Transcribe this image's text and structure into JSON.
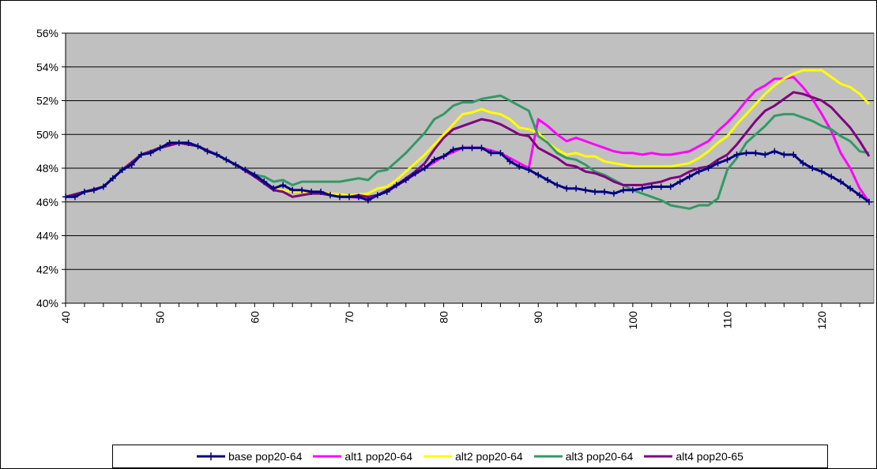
{
  "chart_data": {
    "type": "line",
    "title": "",
    "xlabel": "",
    "ylabel": "",
    "xlim": [
      40,
      125.5
    ],
    "ylim": [
      40,
      56
    ],
    "x_ticks": [
      "40",
      "50",
      "60",
      "70",
      "80",
      "90",
      "100",
      "110",
      "120"
    ],
    "y_ticks": [
      "40%",
      "42%",
      "44%",
      "46%",
      "48%",
      "50%",
      "52%",
      "54%",
      "56%"
    ],
    "grid": "horizontal",
    "plot_background": "#c0c0c0",
    "legend_position": "bottom",
    "series": [
      {
        "name": "base pop20-64",
        "color": "#000080",
        "marker": "plus",
        "x": [
          40,
          41,
          42,
          43,
          44,
          45,
          46,
          47,
          48,
          49,
          50,
          51,
          52,
          53,
          54,
          55,
          56,
          57,
          58,
          59,
          60,
          61,
          62,
          63,
          64,
          65,
          66,
          67,
          68,
          69,
          70,
          71,
          72,
          73,
          74,
          75,
          76,
          77,
          78,
          79,
          80,
          81,
          82,
          83,
          84,
          85,
          86,
          87,
          88,
          89,
          90,
          91,
          92,
          93,
          94,
          95,
          96,
          97,
          98,
          99,
          100,
          101,
          102,
          103,
          104,
          105,
          106,
          107,
          108,
          109,
          110,
          111,
          112,
          113,
          114,
          115,
          116,
          117,
          118,
          119,
          120,
          121,
          122,
          123,
          124,
          125
        ],
        "values": [
          46.3,
          46.3,
          46.6,
          46.7,
          46.9,
          47.4,
          47.9,
          48.2,
          48.8,
          48.9,
          49.2,
          49.5,
          49.5,
          49.5,
          49.3,
          49.0,
          48.8,
          48.5,
          48.2,
          47.9,
          47.6,
          47.2,
          46.8,
          47.0,
          46.7,
          46.7,
          46.6,
          46.6,
          46.4,
          46.3,
          46.3,
          46.3,
          46.1,
          46.4,
          46.6,
          47.0,
          47.3,
          47.7,
          48.0,
          48.5,
          48.7,
          49.1,
          49.2,
          49.2,
          49.2,
          48.9,
          48.9,
          48.4,
          48.1,
          47.9,
          47.6,
          47.3,
          47.0,
          46.8,
          46.8,
          46.7,
          46.6,
          46.6,
          46.5,
          46.7,
          46.7,
          46.8,
          46.9,
          46.9,
          46.9,
          47.2,
          47.5,
          47.8,
          48.0,
          48.3,
          48.5,
          48.8,
          48.9,
          48.9,
          48.8,
          49.0,
          48.8,
          48.8,
          48.3,
          48.0,
          47.8,
          47.5,
          47.2,
          46.8,
          46.4,
          46.0
        ]
      },
      {
        "name": "alt1 pop20-64",
        "color": "#ff00ff",
        "x": [
          40,
          42,
          44,
          46,
          48,
          50,
          52,
          54,
          56,
          58,
          60,
          62,
          64,
          66,
          68,
          70,
          72,
          74,
          76,
          78,
          80,
          82,
          84,
          86,
          88,
          89,
          90,
          91,
          92,
          93,
          94,
          95,
          96,
          97,
          98,
          99,
          100,
          101,
          102,
          103,
          104,
          105,
          106,
          107,
          108,
          109,
          110,
          111,
          112,
          113,
          114,
          115,
          116,
          117,
          118,
          119,
          120,
          121,
          122,
          123,
          124,
          125
        ],
        "values": [
          46.3,
          46.6,
          46.9,
          47.9,
          48.8,
          49.2,
          49.5,
          49.3,
          48.8,
          48.2,
          47.6,
          46.8,
          46.6,
          46.6,
          46.4,
          46.3,
          46.2,
          46.6,
          47.3,
          48.0,
          48.7,
          49.2,
          49.2,
          48.9,
          48.3,
          48.0,
          50.9,
          50.5,
          50.0,
          49.6,
          49.8,
          49.6,
          49.4,
          49.2,
          49.0,
          48.9,
          48.9,
          48.8,
          48.9,
          48.8,
          48.8,
          48.9,
          49.0,
          49.3,
          49.6,
          50.2,
          50.7,
          51.3,
          52.0,
          52.6,
          52.9,
          53.3,
          53.3,
          53.4,
          52.8,
          52.1,
          51.2,
          50.2,
          48.9,
          48.0,
          46.8,
          46.0
        ]
      },
      {
        "name": "alt2 pop20-64",
        "color": "#ffff00",
        "x": [
          40,
          42,
          44,
          46,
          48,
          50,
          52,
          54,
          56,
          58,
          60,
          62,
          64,
          66,
          68,
          70,
          72,
          73,
          74,
          75,
          76,
          77,
          78,
          79,
          80,
          81,
          82,
          83,
          84,
          85,
          86,
          87,
          88,
          89,
          90,
          91,
          92,
          93,
          94,
          95,
          96,
          97,
          98,
          99,
          100,
          101,
          102,
          103,
          104,
          105,
          106,
          107,
          108,
          109,
          110,
          111,
          112,
          113,
          114,
          115,
          116,
          117,
          118,
          119,
          120,
          121,
          122,
          123,
          124,
          125
        ],
        "values": [
          46.3,
          46.6,
          46.9,
          47.9,
          48.8,
          49.2,
          49.5,
          49.3,
          48.8,
          48.2,
          47.6,
          46.8,
          46.6,
          46.6,
          46.5,
          46.4,
          46.5,
          46.8,
          46.9,
          47.3,
          47.8,
          48.3,
          48.8,
          49.4,
          50.0,
          50.6,
          51.2,
          51.3,
          51.5,
          51.3,
          51.2,
          50.9,
          50.4,
          50.3,
          50.1,
          49.5,
          49.1,
          48.8,
          48.9,
          48.7,
          48.7,
          48.4,
          48.3,
          48.2,
          48.1,
          48.1,
          48.1,
          48.1,
          48.1,
          48.2,
          48.3,
          48.6,
          49.0,
          49.5,
          49.9,
          50.6,
          51.2,
          51.8,
          52.4,
          52.9,
          53.3,
          53.6,
          53.8,
          53.8,
          53.8,
          53.4,
          53.0,
          52.8,
          52.4,
          51.8
        ]
      },
      {
        "name": "alt3 pop20-64",
        "color": "#339966",
        "x": [
          40,
          42,
          44,
          46,
          48,
          50,
          52,
          54,
          56,
          58,
          60,
          61,
          62,
          63,
          64,
          65,
          66,
          67,
          68,
          69,
          70,
          71,
          72,
          73,
          74,
          75,
          76,
          77,
          78,
          79,
          80,
          81,
          82,
          83,
          84,
          85,
          86,
          87,
          88,
          89,
          90,
          91,
          92,
          93,
          94,
          95,
          96,
          97,
          98,
          99,
          100,
          101,
          102,
          103,
          104,
          105,
          106,
          107,
          108,
          109,
          110,
          111,
          112,
          113,
          114,
          115,
          116,
          117,
          118,
          119,
          120,
          121,
          122,
          123,
          124,
          125
        ],
        "values": [
          46.3,
          46.6,
          46.9,
          47.9,
          48.8,
          49.2,
          49.5,
          49.3,
          48.8,
          48.2,
          47.6,
          47.5,
          47.2,
          47.3,
          47.0,
          47.2,
          47.2,
          47.2,
          47.2,
          47.2,
          47.3,
          47.4,
          47.3,
          47.8,
          47.9,
          48.4,
          48.9,
          49.5,
          50.1,
          50.9,
          51.2,
          51.7,
          51.9,
          51.9,
          52.1,
          52.2,
          52.3,
          52.0,
          51.7,
          51.4,
          49.9,
          49.5,
          48.9,
          48.6,
          48.5,
          48.2,
          47.8,
          47.6,
          47.3,
          47.0,
          46.7,
          46.5,
          46.3,
          46.1,
          45.8,
          45.7,
          45.6,
          45.8,
          45.8,
          46.2,
          47.9,
          48.6,
          49.5,
          50.0,
          50.5,
          51.1,
          51.2,
          51.2,
          51.0,
          50.8,
          50.5,
          50.3,
          49.9,
          49.6,
          49.0,
          48.9
        ]
      },
      {
        "name": "alt4 pop20-65",
        "color": "#800080",
        "x": [
          40,
          42,
          44,
          46,
          48,
          50,
          52,
          54,
          56,
          58,
          60,
          62,
          63,
          64,
          65,
          66,
          67,
          68,
          69,
          70,
          71,
          72,
          73,
          74,
          75,
          76,
          77,
          78,
          79,
          80,
          81,
          82,
          83,
          84,
          85,
          86,
          87,
          88,
          89,
          90,
          91,
          92,
          93,
          94,
          95,
          96,
          97,
          98,
          99,
          100,
          101,
          102,
          103,
          104,
          105,
          106,
          107,
          108,
          109,
          110,
          111,
          112,
          113,
          114,
          115,
          116,
          117,
          118,
          119,
          120,
          121,
          122,
          123,
          124,
          125
        ],
        "values": [
          46.3,
          46.6,
          46.9,
          47.9,
          48.8,
          49.2,
          49.5,
          49.3,
          48.8,
          48.2,
          47.5,
          46.7,
          46.6,
          46.3,
          46.4,
          46.5,
          46.5,
          46.4,
          46.3,
          46.3,
          46.4,
          46.3,
          46.4,
          46.7,
          47.0,
          47.4,
          47.8,
          48.3,
          49.1,
          49.8,
          50.3,
          50.5,
          50.7,
          50.9,
          50.8,
          50.6,
          50.3,
          50.0,
          49.9,
          49.2,
          48.9,
          48.6,
          48.2,
          48.1,
          47.8,
          47.7,
          47.5,
          47.2,
          47.0,
          47.0,
          47.0,
          47.1,
          47.2,
          47.4,
          47.5,
          47.8,
          48.0,
          48.1,
          48.5,
          48.8,
          49.4,
          50.1,
          50.8,
          51.4,
          51.7,
          52.1,
          52.5,
          52.4,
          52.2,
          52.0,
          51.6,
          51.0,
          50.4,
          49.6,
          48.7
        ]
      }
    ]
  }
}
